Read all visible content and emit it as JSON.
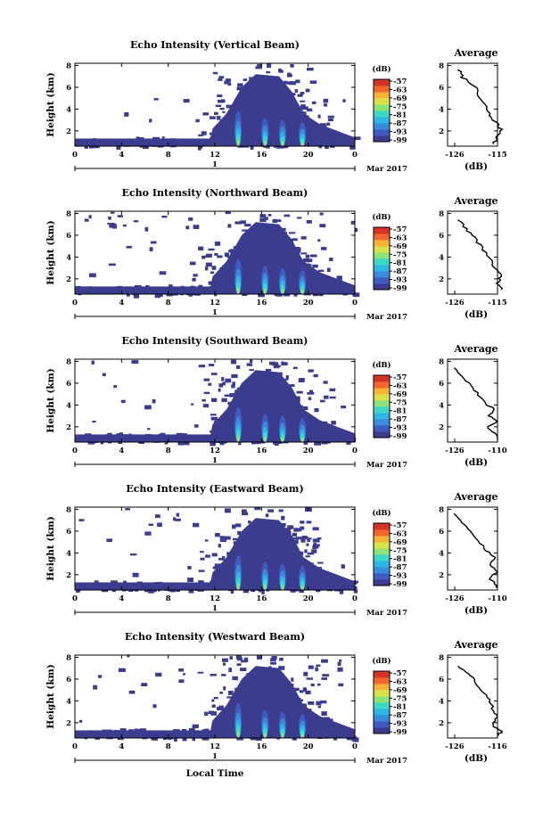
{
  "chart_data": [
    {
      "type": "heatmap",
      "title": "Echo Intensity (Vertical Beam)",
      "ylabel": "Height (km)",
      "xlabel": "",
      "x_ticks": [
        "0",
        "4",
        "8",
        "12",
        "16",
        "20",
        "0"
      ],
      "y_ticks": [
        "2",
        "4",
        "6",
        "8"
      ],
      "xlim": [
        0,
        24
      ],
      "ylim": [
        0.6,
        8.2
      ],
      "date_label": "1",
      "month_label": "Mar 2017",
      "colorbar": {
        "unit": "(dB)",
        "labels": [
          "-57",
          "-63",
          "-69",
          "-75",
          "-81",
          "-87",
          "-93",
          "-99"
        ]
      },
      "profile": {
        "title": "Average",
        "xlabel": "(dB)",
        "x_ticks": [
          "-126",
          "-115"
        ],
        "y_ticks": [
          "2",
          "4",
          "6",
          "8"
        ],
        "points": [
          [
            -125,
            7.6
          ],
          [
            -124,
            6.9
          ],
          [
            -121,
            6.2
          ],
          [
            -120,
            5.2
          ],
          [
            -118,
            4.2
          ],
          [
            -117,
            3.4
          ],
          [
            -115,
            2.6
          ],
          [
            -114,
            2.0
          ],
          [
            -115,
            1.4
          ],
          [
            -116,
            0.8
          ]
        ]
      }
    },
    {
      "type": "heatmap",
      "title": "Echo Intensity (Northward Beam)",
      "ylabel": "Height (km)",
      "xlabel": "",
      "x_ticks": [
        "0",
        "4",
        "8",
        "12",
        "16",
        "20",
        "0"
      ],
      "y_ticks": [
        "2",
        "4",
        "6",
        "8"
      ],
      "xlim": [
        0,
        24
      ],
      "ylim": [
        0.6,
        8.2
      ],
      "date_label": "1",
      "month_label": "Mar 2017",
      "colorbar": {
        "unit": "(dB)",
        "labels": [
          "-57",
          "-63",
          "-69",
          "-75",
          "-81",
          "-87",
          "-93",
          "-99"
        ]
      },
      "profile": {
        "title": "Average",
        "xlabel": "(dB)",
        "x_ticks": [
          "-126",
          "-115"
        ],
        "y_ticks": [
          "2",
          "4",
          "6",
          "8"
        ],
        "points": [
          [
            -125,
            7.4
          ],
          [
            -123,
            6.6
          ],
          [
            -121,
            5.8
          ],
          [
            -119,
            4.9
          ],
          [
            -117,
            3.9
          ],
          [
            -116,
            3.0
          ],
          [
            -114,
            2.2
          ],
          [
            -115,
            1.6
          ],
          [
            -114,
            1.0
          ]
        ]
      }
    },
    {
      "type": "heatmap",
      "title": "Echo Intensity (Southward Beam)",
      "ylabel": "Height (km)",
      "xlabel": "",
      "x_ticks": [
        "0",
        "4",
        "8",
        "12",
        "16",
        "20",
        "0"
      ],
      "y_ticks": [
        "2",
        "4",
        "6",
        "8"
      ],
      "xlim": [
        0,
        24
      ],
      "ylim": [
        0.6,
        8.2
      ],
      "date_label": "1",
      "month_label": "Mar 2017",
      "colorbar": {
        "unit": "(dB)",
        "labels": [
          "-57",
          "-63",
          "-69",
          "-75",
          "-81",
          "-87",
          "-93",
          "-99"
        ]
      },
      "profile": {
        "title": "Average",
        "xlabel": "(dB)",
        "x_ticks": [
          "-126",
          "-110"
        ],
        "y_ticks": [
          "2",
          "4",
          "6",
          "8"
        ],
        "points": [
          [
            -126,
            7.4
          ],
          [
            -123,
            6.6
          ],
          [
            -120,
            5.8
          ],
          [
            -117,
            4.9
          ],
          [
            -114,
            4.0
          ],
          [
            -111,
            3.6
          ],
          [
            -113,
            3.0
          ],
          [
            -110,
            2.5
          ],
          [
            -114,
            2.0
          ],
          [
            -111,
            1.4
          ],
          [
            -110,
            0.8
          ]
        ]
      }
    },
    {
      "type": "heatmap",
      "title": "Echo Intensity (Eastward Beam)",
      "ylabel": "Height (km)",
      "xlabel": "",
      "x_ticks": [
        "0",
        "4",
        "8",
        "12",
        "16",
        "20",
        "0"
      ],
      "y_ticks": [
        "2",
        "4",
        "6",
        "8"
      ],
      "xlim": [
        0,
        24
      ],
      "ylim": [
        0.6,
        8.2
      ],
      "date_label": "1",
      "month_label": "Mar 2017",
      "colorbar": {
        "unit": "(dB)",
        "labels": [
          "-57",
          "-63",
          "-69",
          "-75",
          "-81",
          "-87",
          "-93",
          "-99"
        ]
      },
      "profile": {
        "title": "Average",
        "xlabel": "(dB)",
        "x_ticks": [
          "-126",
          "-110"
        ],
        "y_ticks": [
          "2",
          "4",
          "6",
          "8"
        ],
        "points": [
          [
            -126,
            7.6
          ],
          [
            -123,
            6.8
          ],
          [
            -120,
            6.0
          ],
          [
            -117,
            5.1
          ],
          [
            -114,
            4.2
          ],
          [
            -111,
            3.6
          ],
          [
            -113,
            2.9
          ],
          [
            -110,
            2.3
          ],
          [
            -113,
            1.7
          ],
          [
            -111,
            1.2
          ],
          [
            -110,
            0.8
          ]
        ]
      }
    },
    {
      "type": "heatmap",
      "title": "Echo Intensity (Westward Beam)",
      "ylabel": "Height (km)",
      "xlabel": "Local Time",
      "x_ticks": [
        "0",
        "4",
        "8",
        "12",
        "16",
        "20",
        "0"
      ],
      "y_ticks": [
        "2",
        "4",
        "6",
        "8"
      ],
      "xlim": [
        0,
        24
      ],
      "ylim": [
        0.6,
        8.2
      ],
      "date_label": "1",
      "month_label": "Mar 2017",
      "colorbar": {
        "unit": "(dB)",
        "labels": [
          "-57",
          "-63",
          "-69",
          "-75",
          "-81",
          "-87",
          "-93",
          "-99"
        ]
      },
      "profile": {
        "title": "Average",
        "xlabel": "(dB)",
        "x_ticks": [
          "-126",
          "-116"
        ],
        "y_ticks": [
          "2",
          "4",
          "6",
          "8"
        ],
        "points": [
          [
            -125,
            7.2
          ],
          [
            -123,
            6.5
          ],
          [
            -121,
            5.8
          ],
          [
            -120,
            5.0
          ],
          [
            -118,
            4.1
          ],
          [
            -117,
            3.3
          ],
          [
            -116,
            2.5
          ],
          [
            -117,
            1.8
          ],
          [
            -115,
            1.2
          ],
          [
            -116,
            0.8
          ]
        ]
      }
    }
  ],
  "colors": {
    "scale": [
      "#3b3c8e",
      "#3f5bbd",
      "#3b8bdc",
      "#2fb6e2",
      "#3fd7c6",
      "#8ee27a",
      "#d9e24a",
      "#f7b23a",
      "#f2672f",
      "#d63227"
    ],
    "noise": "#3b3c8e"
  }
}
